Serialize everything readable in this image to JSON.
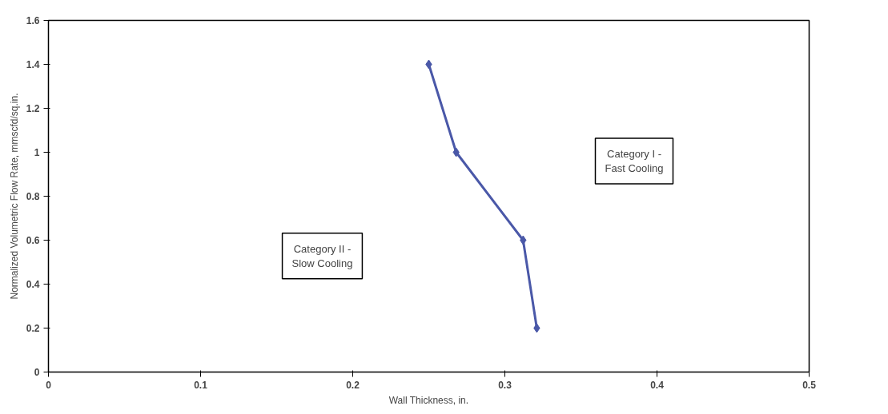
{
  "chart_data": {
    "type": "line",
    "xlabel": "Wall Thickness, in.",
    "ylabel": "Normalized Volumetric Flow Rate, mmscfd/sq.in.",
    "x": [
      0.25,
      0.268,
      0.312,
      0.321
    ],
    "series": [
      {
        "color": "#4a58a8",
        "values": [
          1.4,
          1.0,
          0.6,
          0.2
        ]
      }
    ],
    "xlim": [
      0,
      0.5
    ],
    "xticks": [
      0,
      0.1,
      0.2,
      0.3,
      0.4,
      0.5
    ],
    "ylim": [
      0,
      1.6
    ],
    "yticks": [
      0,
      0.2,
      0.4,
      0.6,
      0.8,
      1,
      1.2,
      1.4,
      1.6
    ],
    "marker": "diamond",
    "line_style": "solid",
    "grid": false,
    "annotations": [
      "Category II -\nSlow Cooling",
      "Category I -\nFast Cooling"
    ]
  }
}
